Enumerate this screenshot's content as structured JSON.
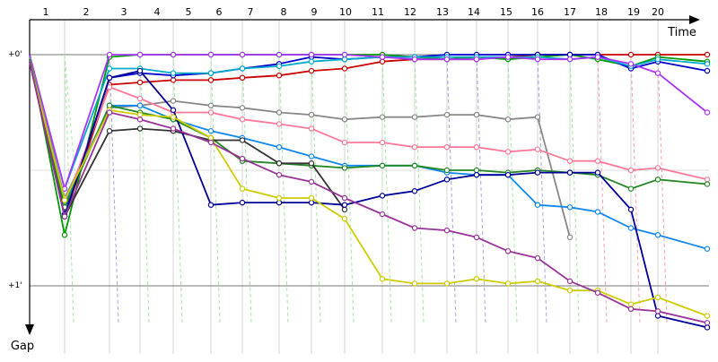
{
  "chart_data": {
    "type": "line",
    "xlabel": "Time",
    "ylabel": "Gap",
    "laps": [
      "1",
      "2",
      "3",
      "4",
      "5",
      "6",
      "7",
      "8",
      "9",
      "10",
      "11",
      "12",
      "13",
      "14",
      "15",
      "16",
      "17",
      "18",
      "19",
      "20"
    ],
    "reference_labels": [
      "+0'",
      "+1'"
    ],
    "ylim": [
      -0.03,
      1.18
    ],
    "grid": true,
    "series": [
      {
        "color": "#cc0000",
        "values": [
          0.0,
          0.7,
          0.13,
          0.12,
          0.11,
          0.11,
          0.1,
          0.09,
          0.07,
          0.06,
          0.03,
          0.02,
          0.02,
          0.02,
          0.01,
          0.0,
          0.0,
          0.0,
          0.0,
          0.0,
          0.0
        ]
      },
      {
        "color": "#009900",
        "values": [
          0.0,
          0.78,
          0.01,
          0.0,
          0.0,
          0.0,
          0.0,
          0.0,
          0.0,
          0.0,
          0.0,
          0.01,
          0.02,
          0.01,
          0.02,
          0.01,
          0.0,
          0.02,
          0.05,
          0.01,
          0.03
        ]
      },
      {
        "color": "#0000cc",
        "values": [
          0.02,
          0.69,
          0.1,
          0.08,
          0.09,
          0.08,
          0.06,
          0.04,
          0.01,
          0.02,
          0.01,
          0.01,
          0.0,
          0.0,
          0.0,
          0.0,
          0.0,
          0.0,
          0.06,
          0.03,
          0.07
        ]
      },
      {
        "color": "#00aacc",
        "values": [
          0.01,
          0.58,
          0.06,
          0.06,
          0.08,
          0.08,
          0.06,
          0.05,
          0.03,
          0.02,
          0.01,
          0.01,
          0.01,
          0.01,
          0.01,
          0.01,
          0.02,
          0.01,
          0.05,
          0.02,
          0.04
        ]
      },
      {
        "color": "#aa33ff",
        "values": [
          0.0,
          0.58,
          0.0,
          0.0,
          0.0,
          0.0,
          0.0,
          0.0,
          0.0,
          0.0,
          0.01,
          0.02,
          0.02,
          0.02,
          0.01,
          0.02,
          0.02,
          0.01,
          0.04,
          0.08,
          0.25
        ]
      },
      {
        "color": "#888888",
        "values": [
          0.01,
          0.62,
          0.23,
          0.22,
          0.2,
          0.22,
          0.23,
          0.25,
          0.26,
          0.28,
          0.27,
          0.27,
          0.26,
          0.26,
          0.28,
          0.27,
          0.79
        ]
      },
      {
        "color": "#ff7799",
        "values": [
          0.02,
          0.65,
          0.14,
          0.19,
          0.25,
          0.25,
          0.28,
          0.3,
          0.32,
          0.38,
          0.38,
          0.4,
          0.4,
          0.4,
          0.42,
          0.41,
          0.46,
          0.46,
          0.5,
          0.49,
          0.54
        ]
      },
      {
        "color": "#1188ee",
        "values": [
          0.02,
          0.65,
          0.22,
          0.22,
          0.28,
          0.33,
          0.36,
          0.4,
          0.44,
          0.48,
          0.48,
          0.48,
          0.51,
          0.52,
          0.52,
          0.65,
          0.66,
          0.68,
          0.75,
          0.78,
          0.84
        ]
      },
      {
        "color": "#228822",
        "values": [
          0.02,
          0.66,
          0.22,
          0.25,
          0.28,
          0.36,
          0.46,
          0.47,
          0.48,
          0.49,
          0.48,
          0.48,
          0.5,
          0.5,
          0.51,
          0.5,
          0.51,
          0.52,
          0.58,
          0.54,
          0.56
        ]
      },
      {
        "color": "#333333",
        "values": [
          0.03,
          0.7,
          0.33,
          0.32,
          0.33,
          0.37,
          0.37,
          0.47,
          0.47,
          0.67
        ]
      },
      {
        "color": "#000099",
        "values": [
          0.03,
          0.7,
          0.1,
          0.07,
          0.24,
          0.65,
          0.64,
          0.64,
          0.64,
          0.65,
          0.61,
          0.59,
          0.54,
          0.52,
          0.52,
          0.51,
          0.51,
          0.51,
          0.67,
          1.13,
          1.18
        ]
      },
      {
        "color": "#cccc00",
        "values": [
          0.03,
          0.63,
          0.24,
          0.26,
          0.27,
          0.36,
          0.58,
          0.62,
          0.62,
          0.71,
          0.97,
          0.99,
          0.99,
          0.97,
          0.99,
          0.98,
          1.02,
          1.02,
          1.08,
          1.05,
          1.13
        ]
      },
      {
        "color": "#993399",
        "values": [
          0.03,
          0.7,
          0.25,
          0.28,
          0.32,
          0.38,
          0.45,
          0.52,
          0.55,
          0.62,
          0.69,
          0.75,
          0.76,
          0.79,
          0.85,
          0.88,
          0.98,
          1.03,
          1.1,
          1.11,
          1.16
        ]
      }
    ]
  }
}
